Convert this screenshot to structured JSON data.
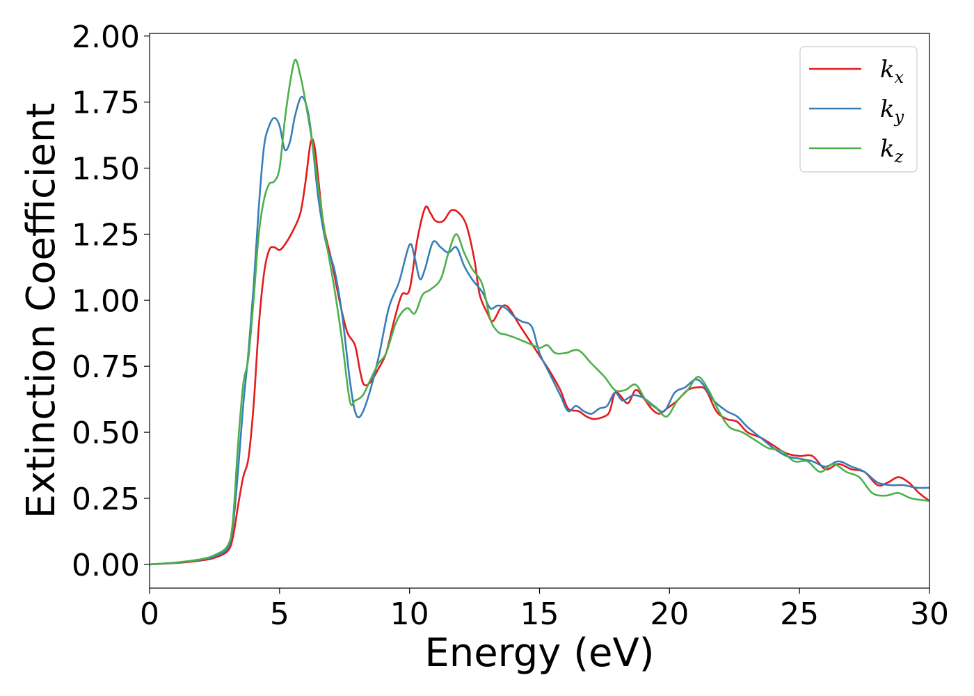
{
  "chart_data": {
    "type": "line",
    "title": "",
    "xlabel": "Energy (eV)",
    "ylabel": "Extinction Coefficient",
    "xlim": [
      0,
      30
    ],
    "ylim": [
      -0.09,
      2.01
    ],
    "xticks": [
      0,
      5,
      10,
      15,
      20,
      25,
      30
    ],
    "xtick_labels": [
      "0",
      "5",
      "10",
      "15",
      "20",
      "25",
      "30"
    ],
    "yticks": [
      0,
      0.25,
      0.5,
      0.75,
      1.0,
      1.25,
      1.5,
      1.75,
      2.0
    ],
    "ytick_labels": [
      "0.00",
      "0.25",
      "0.50",
      "0.75",
      "1.00",
      "1.25",
      "1.50",
      "1.75",
      "2.00"
    ],
    "grid": false,
    "legend_position": "top-right",
    "series": [
      {
        "name": "k",
        "subscript": "x",
        "color": "#e41a1c",
        "points": [
          [
            0,
            0
          ],
          [
            1,
            0.005
          ],
          [
            2,
            0.015
          ],
          [
            2.5,
            0.025
          ],
          [
            3,
            0.05
          ],
          [
            3.2,
            0.1
          ],
          [
            3.4,
            0.22
          ],
          [
            3.6,
            0.33
          ],
          [
            3.8,
            0.4
          ],
          [
            4,
            0.6
          ],
          [
            4.2,
            0.9
          ],
          [
            4.4,
            1.1
          ],
          [
            4.6,
            1.19
          ],
          [
            4.8,
            1.2
          ],
          [
            5,
            1.19
          ],
          [
            5.2,
            1.21
          ],
          [
            5.5,
            1.26
          ],
          [
            5.8,
            1.33
          ],
          [
            6,
            1.45
          ],
          [
            6.2,
            1.6
          ],
          [
            6.35,
            1.58
          ],
          [
            6.5,
            1.45
          ],
          [
            6.7,
            1.28
          ],
          [
            7,
            1.15
          ],
          [
            7.3,
            1.0
          ],
          [
            7.6,
            0.88
          ],
          [
            7.9,
            0.83
          ],
          [
            8.1,
            0.73
          ],
          [
            8.25,
            0.68
          ],
          [
            8.5,
            0.69
          ],
          [
            8.8,
            0.74
          ],
          [
            9.1,
            0.8
          ],
          [
            9.4,
            0.92
          ],
          [
            9.7,
            1.02
          ],
          [
            10,
            1.04
          ],
          [
            10.3,
            1.23
          ],
          [
            10.6,
            1.35
          ],
          [
            10.8,
            1.33
          ],
          [
            11,
            1.3
          ],
          [
            11.3,
            1.3
          ],
          [
            11.6,
            1.34
          ],
          [
            11.9,
            1.33
          ],
          [
            12.2,
            1.28
          ],
          [
            12.5,
            1.15
          ],
          [
            12.7,
            1.02
          ],
          [
            13,
            0.95
          ],
          [
            13.2,
            0.92
          ],
          [
            13.5,
            0.97
          ],
          [
            13.7,
            0.98
          ],
          [
            13.9,
            0.96
          ],
          [
            14.2,
            0.91
          ],
          [
            14.6,
            0.85
          ],
          [
            15,
            0.79
          ],
          [
            15.4,
            0.73
          ],
          [
            15.8,
            0.66
          ],
          [
            16.1,
            0.59
          ],
          [
            16.5,
            0.58
          ],
          [
            16.8,
            0.56
          ],
          [
            17.1,
            0.55
          ],
          [
            17.5,
            0.56
          ],
          [
            17.7,
            0.58
          ],
          [
            17.9,
            0.65
          ],
          [
            18.1,
            0.64
          ],
          [
            18.4,
            0.61
          ],
          [
            18.7,
            0.66
          ],
          [
            19,
            0.63
          ],
          [
            19.3,
            0.59
          ],
          [
            19.6,
            0.57
          ],
          [
            19.9,
            0.59
          ],
          [
            20.3,
            0.62
          ],
          [
            20.7,
            0.66
          ],
          [
            21.1,
            0.67
          ],
          [
            21.4,
            0.66
          ],
          [
            21.8,
            0.58
          ],
          [
            22.2,
            0.55
          ],
          [
            22.6,
            0.54
          ],
          [
            23,
            0.5
          ],
          [
            23.5,
            0.48
          ],
          [
            24,
            0.45
          ],
          [
            24.5,
            0.42
          ],
          [
            25,
            0.41
          ],
          [
            25.5,
            0.41
          ],
          [
            26,
            0.36
          ],
          [
            26.5,
            0.38
          ],
          [
            27,
            0.36
          ],
          [
            27.5,
            0.35
          ],
          [
            28,
            0.3
          ],
          [
            28.4,
            0.31
          ],
          [
            28.8,
            0.33
          ],
          [
            29.2,
            0.31
          ],
          [
            29.6,
            0.27
          ],
          [
            30,
            0.24
          ]
        ]
      },
      {
        "name": "k",
        "subscript": "y",
        "color": "#377eb8",
        "points": [
          [
            0,
            0
          ],
          [
            1,
            0.006
          ],
          [
            2,
            0.018
          ],
          [
            2.5,
            0.03
          ],
          [
            3,
            0.06
          ],
          [
            3.2,
            0.14
          ],
          [
            3.4,
            0.35
          ],
          [
            3.6,
            0.6
          ],
          [
            3.8,
            0.8
          ],
          [
            4,
            1.05
          ],
          [
            4.2,
            1.35
          ],
          [
            4.4,
            1.58
          ],
          [
            4.6,
            1.66
          ],
          [
            4.8,
            1.69
          ],
          [
            5,
            1.66
          ],
          [
            5.2,
            1.57
          ],
          [
            5.4,
            1.6
          ],
          [
            5.6,
            1.7
          ],
          [
            5.85,
            1.77
          ],
          [
            6.1,
            1.71
          ],
          [
            6.3,
            1.56
          ],
          [
            6.5,
            1.38
          ],
          [
            6.8,
            1.21
          ],
          [
            7.1,
            1.12
          ],
          [
            7.4,
            0.95
          ],
          [
            7.7,
            0.7
          ],
          [
            7.9,
            0.58
          ],
          [
            8.1,
            0.56
          ],
          [
            8.4,
            0.63
          ],
          [
            8.8,
            0.78
          ],
          [
            9.2,
            0.97
          ],
          [
            9.6,
            1.07
          ],
          [
            10,
            1.21
          ],
          [
            10.2,
            1.16
          ],
          [
            10.4,
            1.08
          ],
          [
            10.6,
            1.12
          ],
          [
            10.9,
            1.22
          ],
          [
            11.2,
            1.2
          ],
          [
            11.5,
            1.18
          ],
          [
            11.8,
            1.2
          ],
          [
            12.1,
            1.13
          ],
          [
            12.4,
            1.08
          ],
          [
            12.8,
            1.03
          ],
          [
            13.1,
            0.97
          ],
          [
            13.4,
            0.98
          ],
          [
            13.7,
            0.97
          ],
          [
            14,
            0.94
          ],
          [
            14.3,
            0.92
          ],
          [
            14.7,
            0.9
          ],
          [
            15,
            0.8
          ],
          [
            15.4,
            0.72
          ],
          [
            15.8,
            0.64
          ],
          [
            16.1,
            0.58
          ],
          [
            16.4,
            0.6
          ],
          [
            16.7,
            0.58
          ],
          [
            17,
            0.57
          ],
          [
            17.3,
            0.59
          ],
          [
            17.6,
            0.6
          ],
          [
            17.9,
            0.65
          ],
          [
            18.2,
            0.62
          ],
          [
            18.6,
            0.64
          ],
          [
            19,
            0.63
          ],
          [
            19.4,
            0.6
          ],
          [
            19.8,
            0.58
          ],
          [
            20.2,
            0.65
          ],
          [
            20.6,
            0.67
          ],
          [
            21,
            0.7
          ],
          [
            21.3,
            0.68
          ],
          [
            21.7,
            0.62
          ],
          [
            22.2,
            0.58
          ],
          [
            22.6,
            0.56
          ],
          [
            23,
            0.52
          ],
          [
            23.5,
            0.48
          ],
          [
            24,
            0.44
          ],
          [
            24.5,
            0.41
          ],
          [
            25,
            0.4
          ],
          [
            25.5,
            0.39
          ],
          [
            26,
            0.37
          ],
          [
            26.5,
            0.39
          ],
          [
            27,
            0.37
          ],
          [
            27.5,
            0.35
          ],
          [
            28,
            0.31
          ],
          [
            28.5,
            0.3
          ],
          [
            29,
            0.3
          ],
          [
            29.5,
            0.29
          ],
          [
            30,
            0.29
          ]
        ]
      },
      {
        "name": "k",
        "subscript": "z",
        "color": "#4daf4a",
        "points": [
          [
            0,
            0
          ],
          [
            1,
            0.007
          ],
          [
            2,
            0.02
          ],
          [
            2.5,
            0.035
          ],
          [
            3,
            0.07
          ],
          [
            3.2,
            0.16
          ],
          [
            3.4,
            0.45
          ],
          [
            3.6,
            0.68
          ],
          [
            3.8,
            0.78
          ],
          [
            4,
            1.0
          ],
          [
            4.2,
            1.25
          ],
          [
            4.4,
            1.38
          ],
          [
            4.6,
            1.44
          ],
          [
            4.8,
            1.45
          ],
          [
            5,
            1.5
          ],
          [
            5.2,
            1.68
          ],
          [
            5.4,
            1.82
          ],
          [
            5.6,
            1.91
          ],
          [
            5.8,
            1.85
          ],
          [
            6,
            1.75
          ],
          [
            6.3,
            1.57
          ],
          [
            6.5,
            1.42
          ],
          [
            6.8,
            1.22
          ],
          [
            7.1,
            1.05
          ],
          [
            7.4,
            0.85
          ],
          [
            7.7,
            0.62
          ],
          [
            7.9,
            0.62
          ],
          [
            8.2,
            0.64
          ],
          [
            8.5,
            0.7
          ],
          [
            8.8,
            0.76
          ],
          [
            9.1,
            0.8
          ],
          [
            9.5,
            0.92
          ],
          [
            9.9,
            0.97
          ],
          [
            10.2,
            0.95
          ],
          [
            10.5,
            1.02
          ],
          [
            10.8,
            1.04
          ],
          [
            11.2,
            1.08
          ],
          [
            11.5,
            1.18
          ],
          [
            11.8,
            1.25
          ],
          [
            12.1,
            1.18
          ],
          [
            12.4,
            1.12
          ],
          [
            12.8,
            1.06
          ],
          [
            13.1,
            0.93
          ],
          [
            13.4,
            0.88
          ],
          [
            13.7,
            0.87
          ],
          [
            14,
            0.86
          ],
          [
            14.5,
            0.84
          ],
          [
            15,
            0.82
          ],
          [
            15.3,
            0.83
          ],
          [
            15.6,
            0.8
          ],
          [
            16,
            0.8
          ],
          [
            16.5,
            0.81
          ],
          [
            17,
            0.76
          ],
          [
            17.5,
            0.71
          ],
          [
            17.9,
            0.66
          ],
          [
            18.3,
            0.66
          ],
          [
            18.7,
            0.68
          ],
          [
            19.1,
            0.62
          ],
          [
            19.5,
            0.59
          ],
          [
            19.9,
            0.56
          ],
          [
            20.3,
            0.62
          ],
          [
            20.7,
            0.66
          ],
          [
            21.1,
            0.71
          ],
          [
            21.5,
            0.66
          ],
          [
            21.9,
            0.58
          ],
          [
            22.3,
            0.52
          ],
          [
            22.8,
            0.5
          ],
          [
            23.3,
            0.47
          ],
          [
            23.8,
            0.44
          ],
          [
            24.3,
            0.43
          ],
          [
            24.8,
            0.39
          ],
          [
            25.3,
            0.39
          ],
          [
            25.8,
            0.35
          ],
          [
            26.3,
            0.38
          ],
          [
            26.8,
            0.35
          ],
          [
            27.3,
            0.33
          ],
          [
            27.8,
            0.27
          ],
          [
            28.3,
            0.26
          ],
          [
            28.8,
            0.27
          ],
          [
            29.3,
            0.25
          ],
          [
            30,
            0.24
          ]
        ]
      }
    ]
  }
}
